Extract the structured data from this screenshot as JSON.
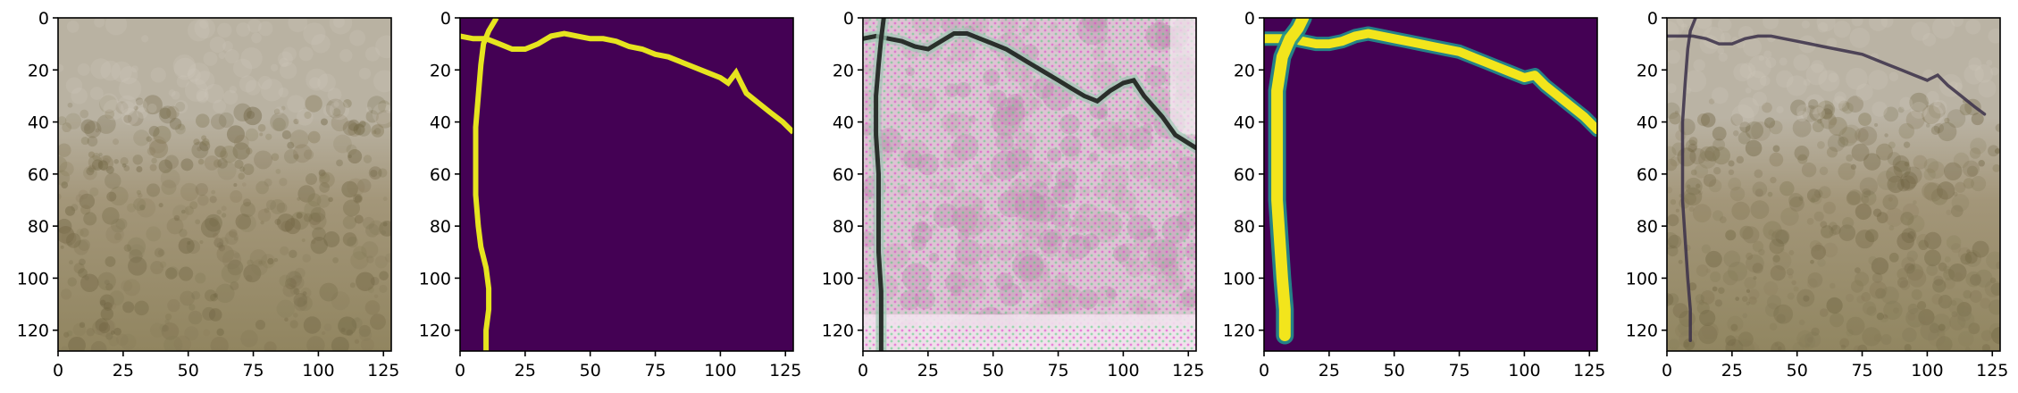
{
  "figure": {
    "panel_count": 5
  },
  "chart_data": [
    {
      "type": "image",
      "panel": "input-photo",
      "content": "concrete wall texture photo",
      "xlim": [
        0,
        128
      ],
      "ylim": [
        128,
        0
      ],
      "xticks": [
        0,
        25,
        50,
        75,
        100,
        125
      ],
      "yticks": [
        0,
        20,
        40,
        60,
        80,
        100,
        120
      ],
      "grid": false,
      "colors": {
        "top": "#b9b2a2",
        "bottom": "#918560",
        "spots": "#6f6442"
      }
    },
    {
      "type": "image",
      "panel": "ground-truth-mask",
      "content": "binary crack mask",
      "colormap": "viridis",
      "xlim": [
        0,
        128
      ],
      "ylim": [
        128,
        0
      ],
      "xticks": [
        0,
        25,
        50,
        75,
        100,
        125
      ],
      "yticks": [
        0,
        20,
        40,
        60,
        80,
        100,
        120
      ],
      "grid": false,
      "colors": {
        "background": "#440154",
        "crack": "#e6e41f"
      },
      "crack_paths": [
        [
          [
            0,
            7
          ],
          [
            5,
            8
          ],
          [
            10,
            8
          ],
          [
            15,
            10
          ],
          [
            20,
            12
          ],
          [
            25,
            12
          ],
          [
            30,
            10
          ],
          [
            35,
            7
          ],
          [
            40,
            6
          ],
          [
            45,
            7
          ],
          [
            50,
            8
          ],
          [
            55,
            8
          ],
          [
            60,
            9
          ],
          [
            65,
            11
          ],
          [
            70,
            12
          ],
          [
            75,
            14
          ],
          [
            80,
            15
          ],
          [
            85,
            17
          ],
          [
            90,
            19
          ],
          [
            95,
            21
          ],
          [
            100,
            23
          ],
          [
            103,
            25
          ],
          [
            106,
            21
          ],
          [
            108,
            25
          ],
          [
            110,
            29
          ],
          [
            115,
            33
          ],
          [
            120,
            37
          ],
          [
            124,
            40
          ],
          [
            128,
            44
          ]
        ],
        [
          [
            14,
            0
          ],
          [
            11,
            5
          ],
          [
            9,
            10
          ],
          [
            8,
            18
          ],
          [
            7,
            30
          ],
          [
            6,
            42
          ],
          [
            6,
            55
          ],
          [
            6,
            68
          ],
          [
            7,
            80
          ],
          [
            8,
            88
          ],
          [
            10,
            96
          ],
          [
            11,
            104
          ],
          [
            11,
            112
          ],
          [
            10,
            120
          ],
          [
            10,
            128
          ]
        ]
      ]
    },
    {
      "type": "image",
      "panel": "generated-image",
      "content": "synthetic crack image with checkerboard artifacts",
      "xlim": [
        0,
        128
      ],
      "ylim": [
        128,
        0
      ],
      "xticks": [
        0,
        25,
        50,
        75,
        100,
        125
      ],
      "yticks": [
        0,
        20,
        40,
        60,
        80,
        100,
        120
      ],
      "grid": false,
      "colors": {
        "background": "#dcc4d3",
        "artifact_magenta": "#e040c8",
        "artifact_green": "#3fcf6f",
        "crack": "#2a2f2b"
      },
      "crack_paths": [
        [
          [
            0,
            8
          ],
          [
            5,
            7
          ],
          [
            10,
            8
          ],
          [
            15,
            9
          ],
          [
            20,
            11
          ],
          [
            25,
            12
          ],
          [
            30,
            9
          ],
          [
            35,
            6
          ],
          [
            40,
            6
          ],
          [
            45,
            8
          ],
          [
            50,
            10
          ],
          [
            55,
            12
          ],
          [
            60,
            15
          ],
          [
            65,
            18
          ],
          [
            70,
            21
          ],
          [
            75,
            24
          ],
          [
            80,
            27
          ],
          [
            85,
            30
          ],
          [
            90,
            32
          ],
          [
            95,
            28
          ],
          [
            100,
            25
          ],
          [
            104,
            24
          ],
          [
            108,
            30
          ],
          [
            115,
            38
          ],
          [
            120,
            45
          ],
          [
            128,
            50
          ]
        ],
        [
          [
            8,
            0
          ],
          [
            7,
            8
          ],
          [
            6,
            18
          ],
          [
            5,
            30
          ],
          [
            5,
            45
          ],
          [
            6,
            60
          ],
          [
            6,
            75
          ],
          [
            6,
            90
          ],
          [
            7,
            105
          ],
          [
            7,
            118
          ],
          [
            7,
            128
          ]
        ]
      ]
    },
    {
      "type": "image",
      "panel": "predicted-mask",
      "content": "soft crack probability map",
      "colormap": "viridis",
      "xlim": [
        0,
        128
      ],
      "ylim": [
        128,
        0
      ],
      "xticks": [
        0,
        25,
        50,
        75,
        100,
        125
      ],
      "yticks": [
        0,
        20,
        40,
        60,
        80,
        100,
        120
      ],
      "grid": false,
      "colors": {
        "background": "#440154",
        "crack": "#f2e51c",
        "edge": "#21908d"
      },
      "crack_paths": [
        [
          [
            0,
            8
          ],
          [
            5,
            8
          ],
          [
            10,
            8
          ],
          [
            15,
            9
          ],
          [
            20,
            10
          ],
          [
            25,
            10
          ],
          [
            30,
            9
          ],
          [
            35,
            7
          ],
          [
            40,
            6
          ],
          [
            45,
            7
          ],
          [
            50,
            8
          ],
          [
            55,
            9
          ],
          [
            60,
            10
          ],
          [
            65,
            11
          ],
          [
            70,
            12
          ],
          [
            75,
            13
          ],
          [
            80,
            15
          ],
          [
            85,
            17
          ],
          [
            90,
            19
          ],
          [
            95,
            21
          ],
          [
            100,
            23
          ],
          [
            104,
            22
          ],
          [
            108,
            26
          ],
          [
            113,
            30
          ],
          [
            118,
            34
          ],
          [
            123,
            38
          ],
          [
            128,
            43
          ]
        ],
        [
          [
            15,
            0
          ],
          [
            13,
            4
          ],
          [
            10,
            8
          ],
          [
            7,
            15
          ],
          [
            5,
            28
          ],
          [
            5,
            40
          ],
          [
            5,
            55
          ],
          [
            5,
            70
          ],
          [
            6,
            85
          ],
          [
            7,
            100
          ],
          [
            8,
            112
          ],
          [
            8,
            122
          ]
        ]
      ]
    },
    {
      "type": "image",
      "panel": "overlay-result",
      "content": "generated crack overlaid on concrete texture",
      "xlim": [
        0,
        128
      ],
      "ylim": [
        128,
        0
      ],
      "xticks": [
        0,
        25,
        50,
        75,
        100,
        125
      ],
      "yticks": [
        0,
        20,
        40,
        60,
        80,
        100,
        120
      ],
      "grid": false,
      "colors": {
        "top": "#bab3a4",
        "bottom": "#918661",
        "crack": "#3a2f49"
      },
      "crack_paths": [
        [
          [
            0,
            7
          ],
          [
            5,
            7
          ],
          [
            10,
            7
          ],
          [
            15,
            8
          ],
          [
            20,
            10
          ],
          [
            25,
            10
          ],
          [
            30,
            8
          ],
          [
            35,
            7
          ],
          [
            40,
            7
          ],
          [
            45,
            8
          ],
          [
            50,
            9
          ],
          [
            55,
            10
          ],
          [
            60,
            11
          ],
          [
            65,
            12
          ],
          [
            70,
            13
          ],
          [
            75,
            14
          ],
          [
            80,
            16
          ],
          [
            85,
            18
          ],
          [
            90,
            20
          ],
          [
            95,
            22
          ],
          [
            100,
            24
          ],
          [
            104,
            22
          ],
          [
            108,
            26
          ],
          [
            113,
            30
          ],
          [
            118,
            34
          ],
          [
            122,
            37
          ]
        ],
        [
          [
            11,
            0
          ],
          [
            9,
            5
          ],
          [
            8,
            12
          ],
          [
            7,
            25
          ],
          [
            6,
            40
          ],
          [
            6,
            55
          ],
          [
            6,
            70
          ],
          [
            7,
            85
          ],
          [
            8,
            100
          ],
          [
            9,
            112
          ],
          [
            9,
            124
          ]
        ]
      ]
    }
  ]
}
